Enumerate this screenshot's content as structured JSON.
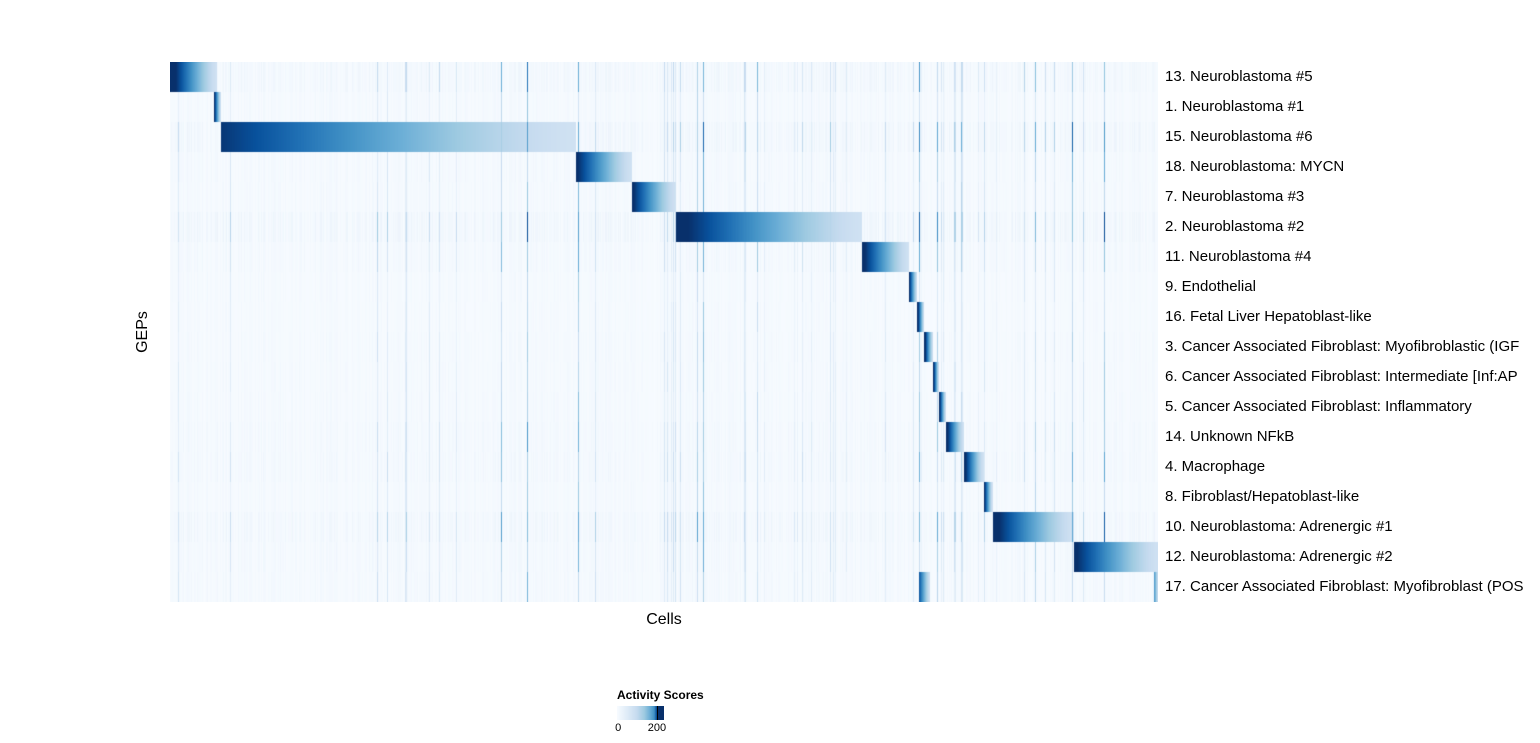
{
  "chart_data": {
    "type": "heatmap",
    "title": "",
    "xlabel": "Cells",
    "ylabel": "GEPs",
    "grid": false,
    "legend_position": "bottom-left",
    "colorbar": {
      "label": "Activity Scores",
      "min": 0,
      "max": 200,
      "min_label": "0",
      "max_label": "200"
    },
    "colormap": "Blues",
    "colormap_stops": [
      "#f7fbff",
      "#deebf7",
      "#c6dbef",
      "#9ecae1",
      "#6baed6",
      "#4292c6",
      "#2171b5",
      "#08519c",
      "#08306b"
    ],
    "n_rows": 18,
    "x_axis_unit": "cells (sorted by max GEP activity, fraction of total)",
    "rows": [
      {
        "label": "13. Neuroblastoma #5",
        "noise": 1.2,
        "blocks": [
          {
            "start": 0.0,
            "end": 0.047,
            "peak": 230
          }
        ]
      },
      {
        "label": "1. Neuroblastoma #1",
        "noise": 0.7,
        "blocks": [
          {
            "start": 0.044,
            "end": 0.051,
            "peak": 225
          }
        ]
      },
      {
        "label": "15. Neuroblastoma #6",
        "noise": 1.4,
        "blocks": [
          {
            "start": 0.051,
            "end": 0.41,
            "peak": 195
          }
        ]
      },
      {
        "label": "18. Neuroblastoma: MYCN",
        "noise": 0.8,
        "blocks": [
          {
            "start": 0.41,
            "end": 0.467,
            "peak": 210
          }
        ]
      },
      {
        "label": "7. Neuroblastoma #3",
        "noise": 0.8,
        "blocks": [
          {
            "start": 0.467,
            "end": 0.512,
            "peak": 210
          }
        ]
      },
      {
        "label": "2. Neuroblastoma #2",
        "noise": 1.5,
        "blocks": [
          {
            "start": 0.512,
            "end": 0.7,
            "peak": 215
          }
        ]
      },
      {
        "label": "11. Neuroblastoma #4",
        "noise": 0.9,
        "blocks": [
          {
            "start": 0.7,
            "end": 0.747,
            "peak": 215
          }
        ]
      },
      {
        "label": "9. Endothelial",
        "noise": 0.6,
        "blocks": [
          {
            "start": 0.747,
            "end": 0.756,
            "peak": 230
          }
        ]
      },
      {
        "label": "16. Fetal Liver Hepatoblast-like",
        "noise": 0.6,
        "blocks": [
          {
            "start": 0.756,
            "end": 0.763,
            "peak": 230
          }
        ]
      },
      {
        "label": "3. Cancer Associated Fibroblast: Myofibroblastic (IGF",
        "noise": 0.7,
        "blocks": [
          {
            "start": 0.763,
            "end": 0.772,
            "peak": 230
          }
        ]
      },
      {
        "label": "6. Cancer Associated Fibroblast: Intermediate [Inf:AP",
        "noise": 0.7,
        "blocks": [
          {
            "start": 0.772,
            "end": 0.778,
            "peak": 230
          }
        ]
      },
      {
        "label": "5. Cancer Associated Fibroblast: Inflammatory",
        "noise": 0.7,
        "blocks": [
          {
            "start": 0.778,
            "end": 0.785,
            "peak": 230
          }
        ]
      },
      {
        "label": "14. Unknown NFkB",
        "noise": 0.9,
        "blocks": [
          {
            "start": 0.785,
            "end": 0.803,
            "peak": 225
          }
        ]
      },
      {
        "label": "4. Macrophage",
        "noise": 1.0,
        "blocks": [
          {
            "start": 0.803,
            "end": 0.823,
            "peak": 225
          }
        ]
      },
      {
        "label": "8. Fibroblast/Hepatoblast-like",
        "noise": 0.7,
        "blocks": [
          {
            "start": 0.823,
            "end": 0.832,
            "peak": 230
          }
        ]
      },
      {
        "label": "10. Neuroblastoma: Adrenergic #1",
        "noise": 1.3,
        "blocks": [
          {
            "start": 0.832,
            "end": 0.914,
            "peak": 220
          }
        ]
      },
      {
        "label": "12. Neuroblastoma: Adrenergic #2",
        "noise": 0.9,
        "blocks": [
          {
            "start": 0.914,
            "end": 1.0,
            "peak": 210
          }
        ]
      },
      {
        "label": "17. Cancer Associated Fibroblast: Myofibroblast (POS",
        "noise": 0.8,
        "blocks": [
          {
            "start": 0.758,
            "end": 0.769,
            "peak": 170
          },
          {
            "start": 0.995,
            "end": 1.0,
            "peak": 140
          }
        ]
      }
    ]
  }
}
